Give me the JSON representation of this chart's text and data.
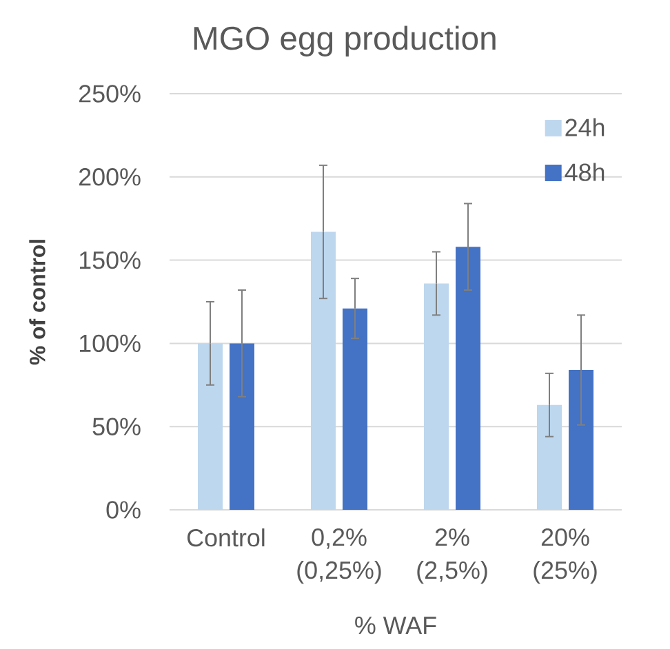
{
  "chart_data": {
    "type": "bar",
    "title": "MGO egg production",
    "xlabel": "% WAF",
    "ylabel": "% of control",
    "categories": [
      "Control",
      "0,2% (0,25%)",
      "2% (2,5%)",
      "20% (25%)"
    ],
    "series": [
      {
        "name": "24h",
        "color": "#bdd7ee",
        "values": [
          100,
          167,
          136,
          63
        ],
        "errors": [
          25,
          40,
          19,
          19
        ]
      },
      {
        "name": "48h",
        "color": "#4472c4",
        "values": [
          100,
          121,
          158,
          84
        ],
        "errors": [
          32,
          18,
          26,
          33
        ]
      }
    ],
    "ylim": [
      0,
      250
    ],
    "yticks": [
      {
        "value": 0,
        "label": "0%"
      },
      {
        "value": 50,
        "label": "50%"
      },
      {
        "value": 100,
        "label": "100%"
      },
      {
        "value": 150,
        "label": "150%"
      },
      {
        "value": 200,
        "label": "200%"
      },
      {
        "value": 250,
        "label": "250%"
      }
    ],
    "grid": "y",
    "legend": "top right"
  }
}
